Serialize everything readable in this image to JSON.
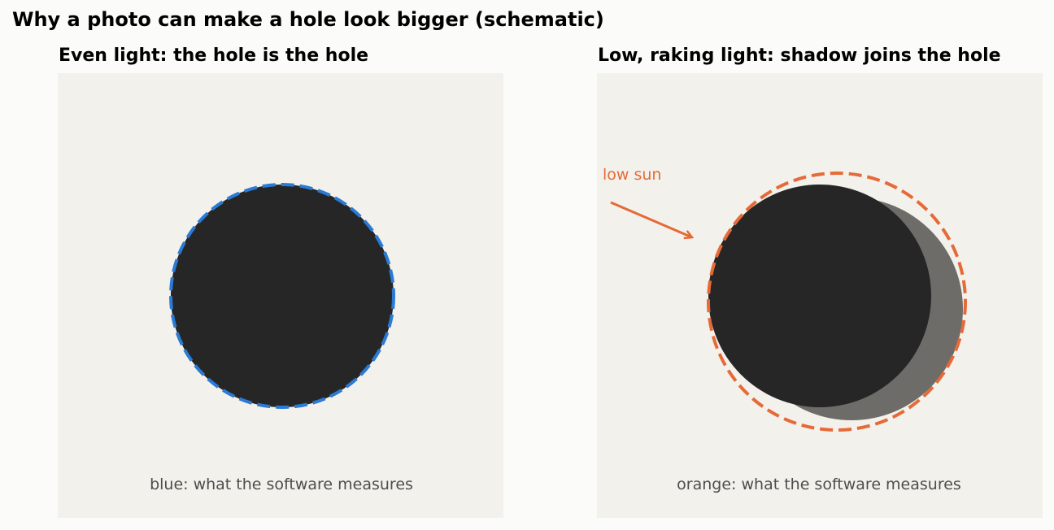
{
  "title": "Why a photo can make a hole look bigger (schematic)",
  "colors": {
    "background": "#fbfbf9",
    "panel_background": "#f2f1ec",
    "hole": "#262626",
    "shadow": "#6d6c68",
    "blue_outline": "#2a7ad6",
    "orange_outline": "#e66a37",
    "caption_text": "#4d4d4d"
  },
  "panels": {
    "even": {
      "title": "Even light: the hole is the hole",
      "caption": "blue: what the software measures"
    },
    "raking": {
      "title": "Low, raking light: shadow joins the hole",
      "caption": "orange: what the software measures",
      "sun_label": "low sun"
    }
  }
}
